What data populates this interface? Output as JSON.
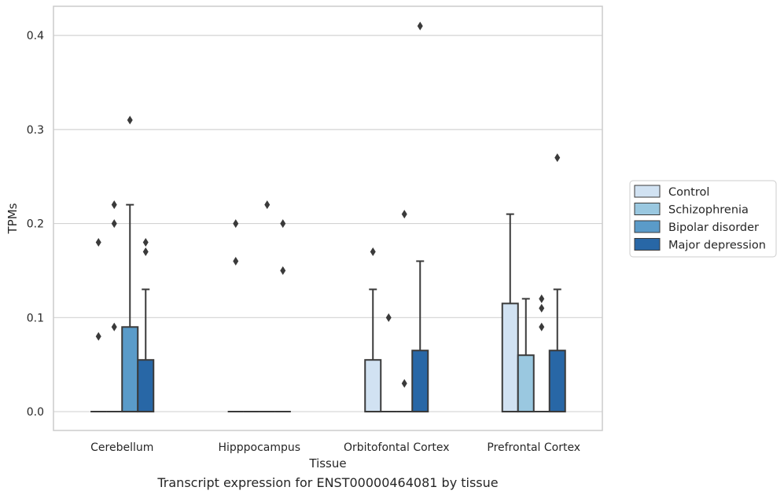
{
  "caption": "Transcript expression for ENST00000464081 by tissue",
  "chart_data": {
    "type": "box",
    "xlabel": "Tissue",
    "ylabel": "TPMs",
    "ylim": [
      -0.02,
      0.431
    ],
    "yticks": [
      0.0,
      0.1,
      0.2,
      0.3,
      0.4
    ],
    "ytick_labels": [
      "0.0",
      "0.1",
      "0.2",
      "0.3",
      "0.4"
    ],
    "grid": "horizontal",
    "legend_position": "right",
    "categories": [
      "Cerebellum",
      "Hipppocampus",
      "Orbitofontal Cortex",
      "Prefrontal Cortex"
    ],
    "series": [
      {
        "name": "Control",
        "color": "#d1e2f2",
        "boxes": [
          {
            "q1": 0,
            "median": 0,
            "q3": 0,
            "whisker_low": 0,
            "whisker_high": 0,
            "outliers": [
              0.08,
              0.18
            ]
          },
          {
            "q1": 0,
            "median": 0,
            "q3": 0,
            "whisker_low": 0,
            "whisker_high": 0,
            "outliers": [
              0.16,
              0.2
            ]
          },
          {
            "q1": 0,
            "median": 0,
            "q3": 0.055,
            "whisker_low": 0,
            "whisker_high": 0.13,
            "outliers": [
              0.17
            ]
          },
          {
            "q1": 0,
            "median": 0,
            "q3": 0.115,
            "whisker_low": 0,
            "whisker_high": 0.21,
            "outliers": []
          }
        ]
      },
      {
        "name": "Schizophrenia",
        "color": "#9ac8e0",
        "boxes": [
          {
            "q1": 0,
            "median": 0,
            "q3": 0,
            "whisker_low": 0,
            "whisker_high": 0,
            "outliers": [
              0.09,
              0.2,
              0.22
            ]
          },
          {
            "q1": 0,
            "median": 0,
            "q3": 0,
            "whisker_low": 0,
            "whisker_high": 0,
            "outliers": []
          },
          {
            "q1": 0,
            "median": 0,
            "q3": 0,
            "whisker_low": 0,
            "whisker_high": 0,
            "outliers": [
              0.1
            ]
          },
          {
            "q1": 0,
            "median": 0,
            "q3": 0.06,
            "whisker_low": 0,
            "whisker_high": 0.12,
            "outliers": []
          }
        ]
      },
      {
        "name": "Bipolar disorder",
        "color": "#5a9bc9",
        "boxes": [
          {
            "q1": 0,
            "median": 0,
            "q3": 0.09,
            "whisker_low": 0,
            "whisker_high": 0.22,
            "outliers": [
              0.31
            ]
          },
          {
            "q1": 0,
            "median": 0,
            "q3": 0,
            "whisker_low": 0,
            "whisker_high": 0,
            "outliers": [
              0.22
            ]
          },
          {
            "q1": 0,
            "median": 0,
            "q3": 0,
            "whisker_low": 0,
            "whisker_high": 0,
            "outliers": [
              0.03,
              0.21
            ]
          },
          {
            "q1": 0,
            "median": 0,
            "q3": 0,
            "whisker_low": 0,
            "whisker_high": 0,
            "outliers": [
              0.09,
              0.11,
              0.12
            ]
          }
        ]
      },
      {
        "name": "Major depression",
        "color": "#2867a6",
        "boxes": [
          {
            "q1": 0,
            "median": 0,
            "q3": 0.055,
            "whisker_low": 0,
            "whisker_high": 0.13,
            "outliers": [
              0.17,
              0.18
            ]
          },
          {
            "q1": 0,
            "median": 0,
            "q3": 0,
            "whisker_low": 0,
            "whisker_high": 0,
            "outliers": [
              0.15,
              0.2
            ]
          },
          {
            "q1": 0,
            "median": 0,
            "q3": 0.065,
            "whisker_low": 0,
            "whisker_high": 0.16,
            "outliers": [
              0.41
            ]
          },
          {
            "q1": 0,
            "median": 0,
            "q3": 0.065,
            "whisker_low": 0,
            "whisker_high": 0.13,
            "outliers": [
              0.27
            ]
          }
        ]
      }
    ]
  }
}
